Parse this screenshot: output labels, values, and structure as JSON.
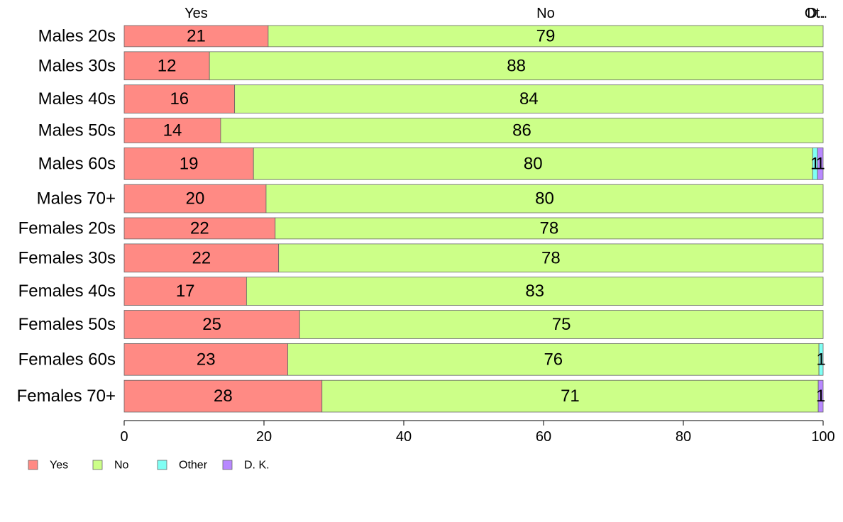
{
  "chart_data": {
    "type": "bar",
    "orientation": "horizontal",
    "stacked": true,
    "xlim": [
      0,
      100
    ],
    "ticks": [
      0,
      20,
      40,
      60,
      80,
      100
    ],
    "categories": [
      "Males 20s",
      "Males 30s",
      "Males 40s",
      "Males 50s",
      "Males 60s",
      "Males 70+",
      "Females 20s",
      "Females 30s",
      "Females 40s",
      "Females 50s",
      "Females 60s",
      "Females 70+"
    ],
    "bar_weights": [
      6,
      8,
      8,
      7,
      9,
      8,
      6,
      8,
      8,
      8,
      9,
      9
    ],
    "series": [
      {
        "name": "Yes",
        "color": "#ff8a84",
        "values": [
          20.6,
          12.2,
          15.8,
          13.8,
          18.5,
          20.3,
          21.6,
          22.1,
          17.5,
          25.1,
          23.4,
          28.3
        ]
      },
      {
        "name": "No",
        "color": "#ccff88",
        "values": [
          79.4,
          87.8,
          84.2,
          86.2,
          80.0,
          79.7,
          78.4,
          77.9,
          82.5,
          74.9,
          76.0,
          71.0
        ]
      },
      {
        "name": "Other",
        "color": "#7ffff4",
        "values": [
          0,
          0,
          0,
          0,
          0.7,
          0,
          0,
          0,
          0,
          0,
          0.6,
          0
        ]
      },
      {
        "name": "D. K.",
        "color": "#b888ff",
        "values": [
          0,
          0,
          0,
          0,
          0.8,
          0,
          0,
          0,
          0,
          0,
          0,
          0.7
        ]
      }
    ],
    "labels": [
      [
        "21",
        "79",
        "",
        ""
      ],
      [
        "12",
        "88",
        "",
        ""
      ],
      [
        "16",
        "84",
        "",
        ""
      ],
      [
        "14",
        "86",
        "",
        ""
      ],
      [
        "19",
        "80",
        "1",
        "1"
      ],
      [
        "20",
        "80",
        "",
        ""
      ],
      [
        "22",
        "78",
        "",
        ""
      ],
      [
        "22",
        "78",
        "",
        ""
      ],
      [
        "17",
        "83",
        "",
        ""
      ],
      [
        "25",
        "75",
        "",
        ""
      ],
      [
        "23",
        "76",
        "1",
        ""
      ],
      [
        "28",
        "71",
        "",
        "1"
      ]
    ],
    "top_labels": [
      "Yes",
      "No",
      "Ot..",
      "D.."
    ],
    "legend": [
      "Yes",
      "No",
      "Other",
      "D. K."
    ],
    "legend_position": "bottom-left",
    "grid": false
  }
}
